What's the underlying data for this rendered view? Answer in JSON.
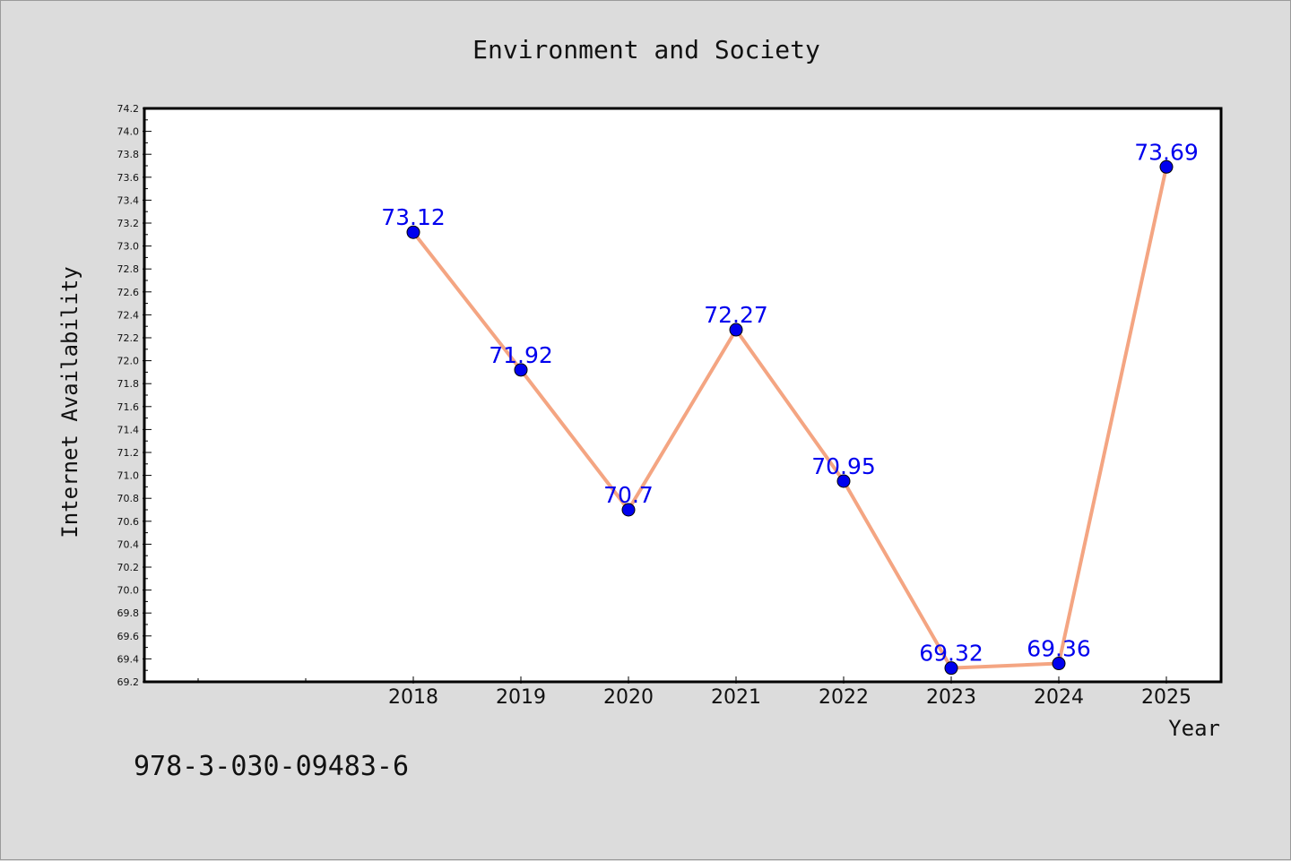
{
  "chart_data": {
    "type": "line",
    "title": "Environment and Society",
    "xlabel": "Year",
    "ylabel": "Internet Availability",
    "x": [
      "2018",
      "2019",
      "2020",
      "2021",
      "2022",
      "2023",
      "2024",
      "2025"
    ],
    "series": [
      {
        "values": [
          73.12,
          71.92,
          70.7,
          72.27,
          70.95,
          69.32,
          69.36,
          73.69
        ],
        "labels": [
          "73.12",
          "71.92",
          "70.7",
          "72.27",
          "70.95",
          "69.32",
          "69.36",
          "73.69"
        ]
      }
    ],
    "ylim": [
      69.2,
      74.2
    ],
    "yticks": [
      "69.2",
      "69.4",
      "69.6",
      "69.8",
      "70.0",
      "70.2",
      "70.4",
      "70.6",
      "70.8",
      "71.0",
      "71.2",
      "71.4",
      "71.6",
      "71.8",
      "72.0",
      "72.2",
      "72.4",
      "72.6",
      "72.8",
      "73.0",
      "73.2",
      "73.4",
      "73.6",
      "73.8",
      "74.0",
      "74.2"
    ],
    "grid": false,
    "colors": {
      "line": "#f4a582",
      "marker": "#0000ee",
      "label": "#0000ee",
      "background": "#dcdcdc",
      "plot_background": "#ffffff"
    }
  },
  "footer": {
    "isbn": "978-3-030-09483-6"
  }
}
